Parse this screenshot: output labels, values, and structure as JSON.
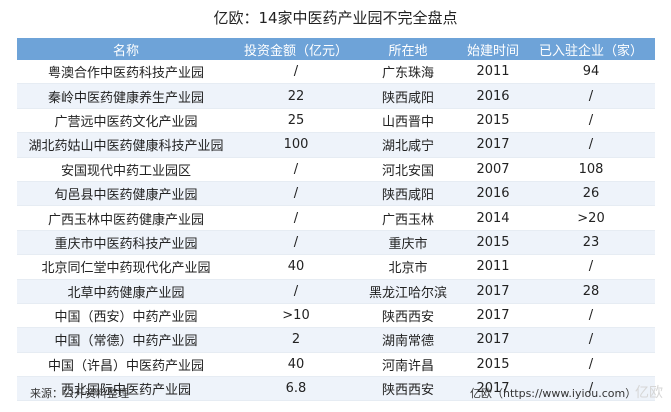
{
  "title": "亿欧：14家中医药产业园不完全盘点",
  "headers": [
    "名称",
    "投资金额（亿元）",
    "所在地",
    "始建时间",
    "已入驻企业（家）"
  ],
  "rows": [
    [
      "粤澳合作中医药科技产业园",
      "/",
      "广东珠海",
      "2011",
      "94"
    ],
    [
      "秦岭中医药健康养生产业园",
      "22",
      "陕西咸阳",
      "2016",
      "/"
    ],
    [
      "广营远中医药文化产业园",
      "25",
      "山西晋中",
      "2015",
      "/"
    ],
    [
      "湖北药姑山中医药健康科技产业园",
      "100",
      "湖北咸宁",
      "2017",
      "/"
    ],
    [
      "安国现代中药工业园区",
      "/",
      "河北安国",
      "2007",
      "108"
    ],
    [
      "旬邑县中医药健康产业园",
      "/",
      "陕西咸阳",
      "2016",
      "26"
    ],
    [
      "广西玉林中医药健康产业园",
      "/",
      "广西玉林",
      "2014",
      ">20"
    ],
    [
      "重庆市中医药科技产业园",
      "/",
      "重庆市",
      "2015",
      "23"
    ],
    [
      "北京同仁堂中药现代化产业园",
      "40",
      "北京市",
      "2011",
      "/"
    ],
    [
      "北草中药健康产业园",
      "/",
      "黑龙江哈尔滨",
      "2017",
      "28"
    ],
    [
      "中国（西安）中药产业园",
      ">10",
      "陕西西安",
      "2017",
      "/"
    ],
    [
      "中国（常德）中药产业园",
      "2",
      "湖南常德",
      "2017",
      "/"
    ],
    [
      "中国（许昌）中医药产业园",
      "40",
      "河南许昌",
      "2015",
      "/"
    ],
    [
      "西北国际中医药产业园",
      "6.8",
      "陕西西安",
      "2017",
      "/"
    ]
  ],
  "footer": {
    "source": "来源：公开资料整理",
    "credit": "亿欧（https://www.iyiou.com）"
  },
  "watermark": "亿欧",
  "colors": {
    "header_bg": "#6ea3d8",
    "header_text": "#ffffff",
    "row_alt": "#eef3fa"
  }
}
